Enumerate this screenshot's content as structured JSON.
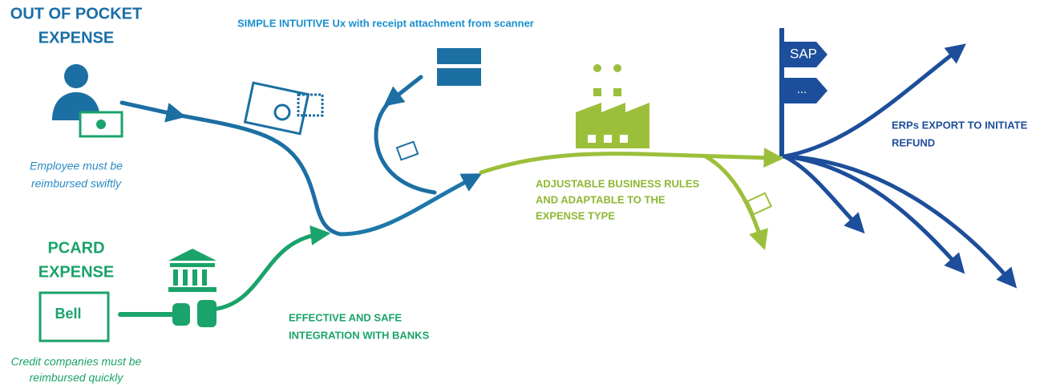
{
  "sources": [
    {
      "title": [
        "OUT OF POCKET",
        "EXPENSE"
      ],
      "note": [
        "Employee must be",
        "reimbursed swiftly"
      ]
    },
    {
      "title": [
        "PCARD",
        "EXPENSE"
      ],
      "card_label": "Bell",
      "note": [
        "Credit companies must be",
        "reimbursed quickly"
      ]
    }
  ],
  "steps": {
    "ux": "SIMPLE INTUITIVE Ux with receipt attachment from scanner",
    "banks": [
      "EFFECTIVE AND SAFE",
      "INTEGRATION WITH BANKS"
    ],
    "rules": [
      "ADJUSTABLE BUSINESS RULES",
      "AND ADAPTABLE TO THE",
      "EXPENSE TYPE"
    ],
    "erp": [
      "ERPs EXPORT TO INITIATE",
      "REFUND"
    ]
  },
  "erp_signs": [
    "SAP",
    "..."
  ]
}
